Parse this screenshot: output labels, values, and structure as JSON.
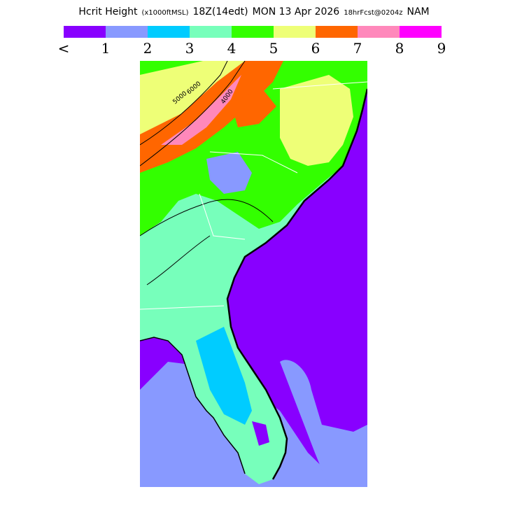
{
  "header": {
    "field": "Hcrit Height",
    "units": "(x1000ftMSL)",
    "valid_time": "18Z(14edt)",
    "date": "MON 13 Apr 2026",
    "forecast": "18hrFcst@0204z",
    "model": "NAM"
  },
  "legend": {
    "ticks": [
      "<",
      "1",
      "2",
      "3",
      "4",
      "5",
      "6",
      "7",
      "8",
      "9"
    ],
    "colors": [
      "#8800ff",
      "#8899ff",
      "#00ccff",
      "#77ffbb",
      "#33ff00",
      "#eeff77",
      "#ff6600",
      "#ff88bb",
      "#ff00ff"
    ]
  },
  "map": {
    "region": "Southeastern United States",
    "ocean_color": "#8800ff",
    "contour_color": "#000000",
    "border_color": "#ffffff",
    "contour_labels": [
      "6000",
      "5000",
      "4000"
    ]
  }
}
